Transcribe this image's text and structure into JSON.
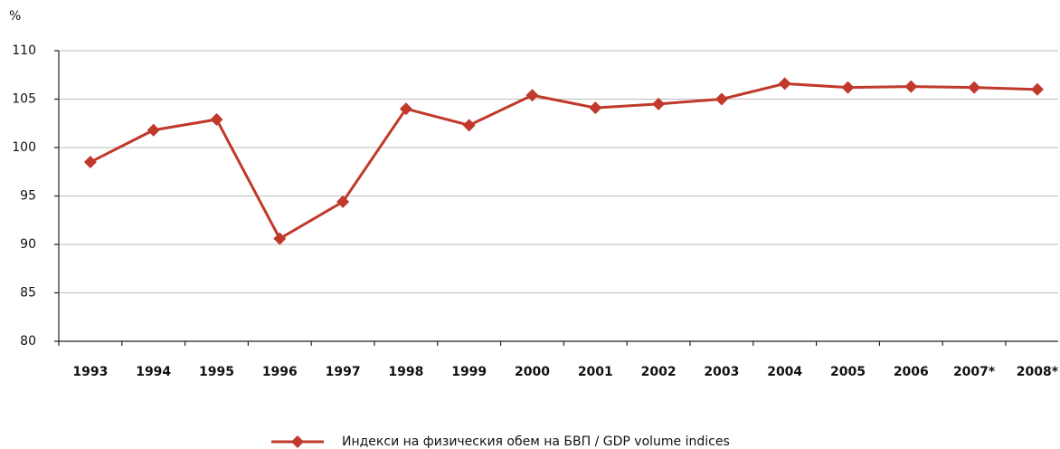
{
  "chart_data": {
    "type": "line",
    "y_label": "%",
    "categories": [
      "1993",
      "1994",
      "1995",
      "1996",
      "1997",
      "1998",
      "1999",
      "2000",
      "2001",
      "2002",
      "2003",
      "2004",
      "2005",
      "2006",
      "2007*",
      "2008*"
    ],
    "series": [
      {
        "name": "Индекси на физическия обем на БВП / GDP volume indices",
        "color": "#c0392b",
        "values": [
          98.5,
          101.8,
          102.9,
          90.6,
          94.4,
          104.0,
          102.3,
          105.4,
          104.1,
          104.5,
          105.0,
          106.6,
          106.2,
          106.3,
          106.2,
          106.0
        ]
      }
    ],
    "ylim": [
      80,
      110
    ],
    "yticks": [
      80,
      85,
      90,
      95,
      100,
      105,
      110
    ],
    "grid": true,
    "legend": "bottom"
  }
}
